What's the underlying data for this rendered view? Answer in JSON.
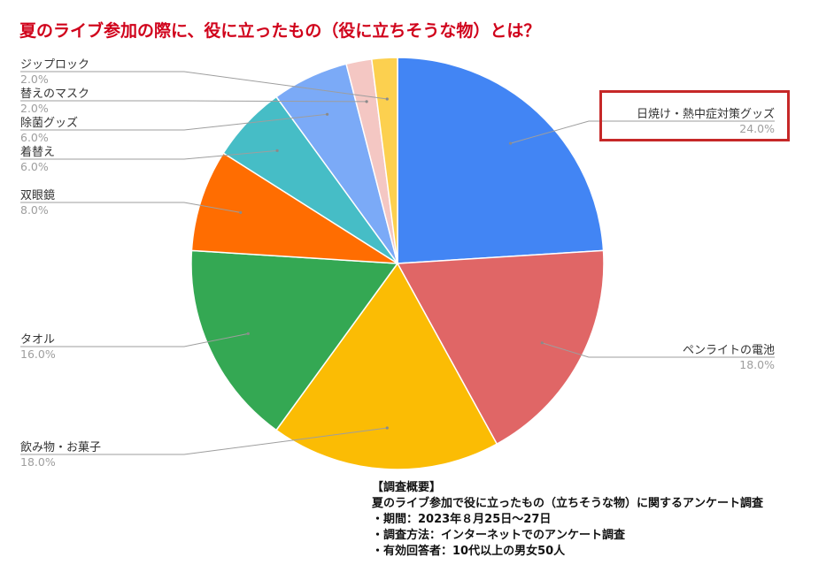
{
  "title": "夏のライブ参加の際に、役に立ったもの（役に立ちそうな物）とは？",
  "chart_data": {
    "type": "pie",
    "title": "夏のライブ参加の際に、役に立ったもの（役に立ちそうな物）とは？",
    "start_angle_deg": 0,
    "direction": "clockwise",
    "slices": [
      {
        "label": "日焼け・熱中症対策グッズ",
        "value": 24.0,
        "pct_label": "24.0%",
        "color": "#4285f4"
      },
      {
        "label": "ペンライトの電池",
        "value": 18.0,
        "pct_label": "18.0%",
        "color": "#e06666"
      },
      {
        "label": "飲み物・お菓子",
        "value": 18.0,
        "pct_label": "18.0%",
        "color": "#fbbc04"
      },
      {
        "label": "タオル",
        "value": 16.0,
        "pct_label": "16.0%",
        "color": "#34a853"
      },
      {
        "label": "双眼鏡",
        "value": 8.0,
        "pct_label": "8.0%",
        "color": "#ff6d01"
      },
      {
        "label": "着替え",
        "value": 6.0,
        "pct_label": "6.0%",
        "color": "#46bdc6"
      },
      {
        "label": "除菌グッズ",
        "value": 6.0,
        "pct_label": "6.0%",
        "color": "#7baaf7"
      },
      {
        "label": "替えのマスク",
        "value": 2.0,
        "pct_label": "2.0%",
        "color": "#f4c7c3"
      },
      {
        "label": "ジップロック",
        "value": 2.0,
        "pct_label": "2.0%",
        "color": "#fcd04f"
      }
    ],
    "highlighted": "日焼け・熱中症対策グッズ",
    "highlight_color": "#c62828"
  },
  "survey": {
    "heading": "【調査概要】",
    "subject": "夏のライブ参加で役に立ったもの（立ちそうな物）に関するアンケート調査",
    "period": "・期間：2023年８月25日～27日",
    "method": "・調査方法：インターネットでのアンケート調査",
    "respondents": "・有効回答者：10代以上の男女50人"
  }
}
